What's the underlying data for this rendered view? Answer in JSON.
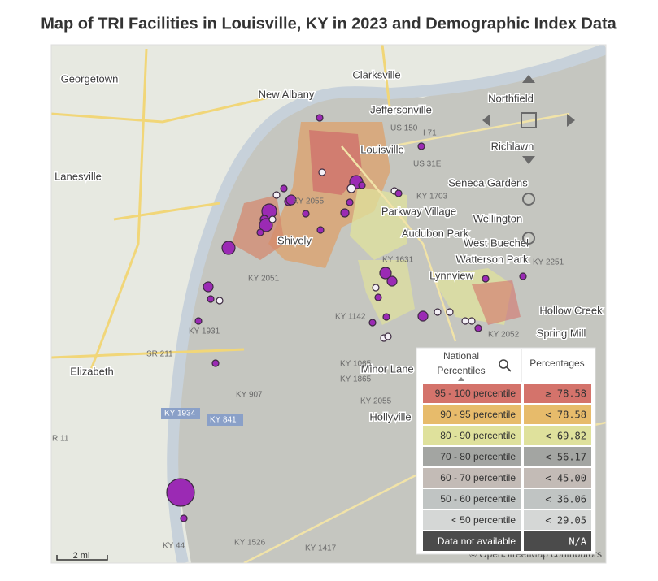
{
  "header": {
    "title": "Map of TRI Facilities in Louisville, KY in 2023 and Demographic Index Data"
  },
  "map": {
    "places": [
      "Georgetown",
      "Clarksville",
      "New Albany",
      "Jeffersonville",
      "Lanesville",
      "Louisville",
      "Shively",
      "Parkway Village",
      "Audubon Park",
      "Lynnview",
      "Watterson Park",
      "West Buechel",
      "Hollow Creek",
      "Spring Mill",
      "Elizabeth",
      "Northfield",
      "Richlawn",
      "Seneca Gardens",
      "Wellington",
      "Minor Lane Heights",
      "Hollyville"
    ],
    "roads": [
      "US 150",
      "I 71",
      "US 31E",
      "KY 1703",
      "KY 2055",
      "KY 1631",
      "KY 2051",
      "KY 1931",
      "SR 211",
      "KY 1065",
      "KY 1865",
      "KY 907",
      "KY 2055",
      "KY 1934",
      "KY 841",
      "KY 1142",
      "KY 2052",
      "KY 44",
      "KY 1526",
      "KY 1417",
      "KY 2251",
      "R 11"
    ],
    "scale": "2 mi",
    "attribution": "© OpenStreetMap contributors"
  },
  "legend": {
    "headers": [
      "National Percentiles",
      "Percentages"
    ],
    "rows": [
      {
        "label": "95 - 100 percentile",
        "value": "≥ 78.58",
        "color": "#d4736b"
      },
      {
        "label": "90 - 95 percentile",
        "value": "< 78.58",
        "color": "#e7bb6b"
      },
      {
        "label": "80 - 90 percentile",
        "value": "< 69.82",
        "color": "#dfe19c"
      },
      {
        "label": "70 - 80 percentile",
        "value": "< 56.17",
        "color": "#a3a5a2"
      },
      {
        "label": "60 - 70 percentile",
        "value": "< 45.00",
        "color": "#c3bbb6"
      },
      {
        "label": "50 - 60 percentile",
        "value": "< 36.06",
        "color": "#c0c4c3"
      },
      {
        "label": "< 50 percentile",
        "value": "< 29.05",
        "color": "#d5d7d6"
      },
      {
        "label": "Data not available",
        "value": "N/A",
        "color": "#4b4b4b"
      }
    ]
  }
}
